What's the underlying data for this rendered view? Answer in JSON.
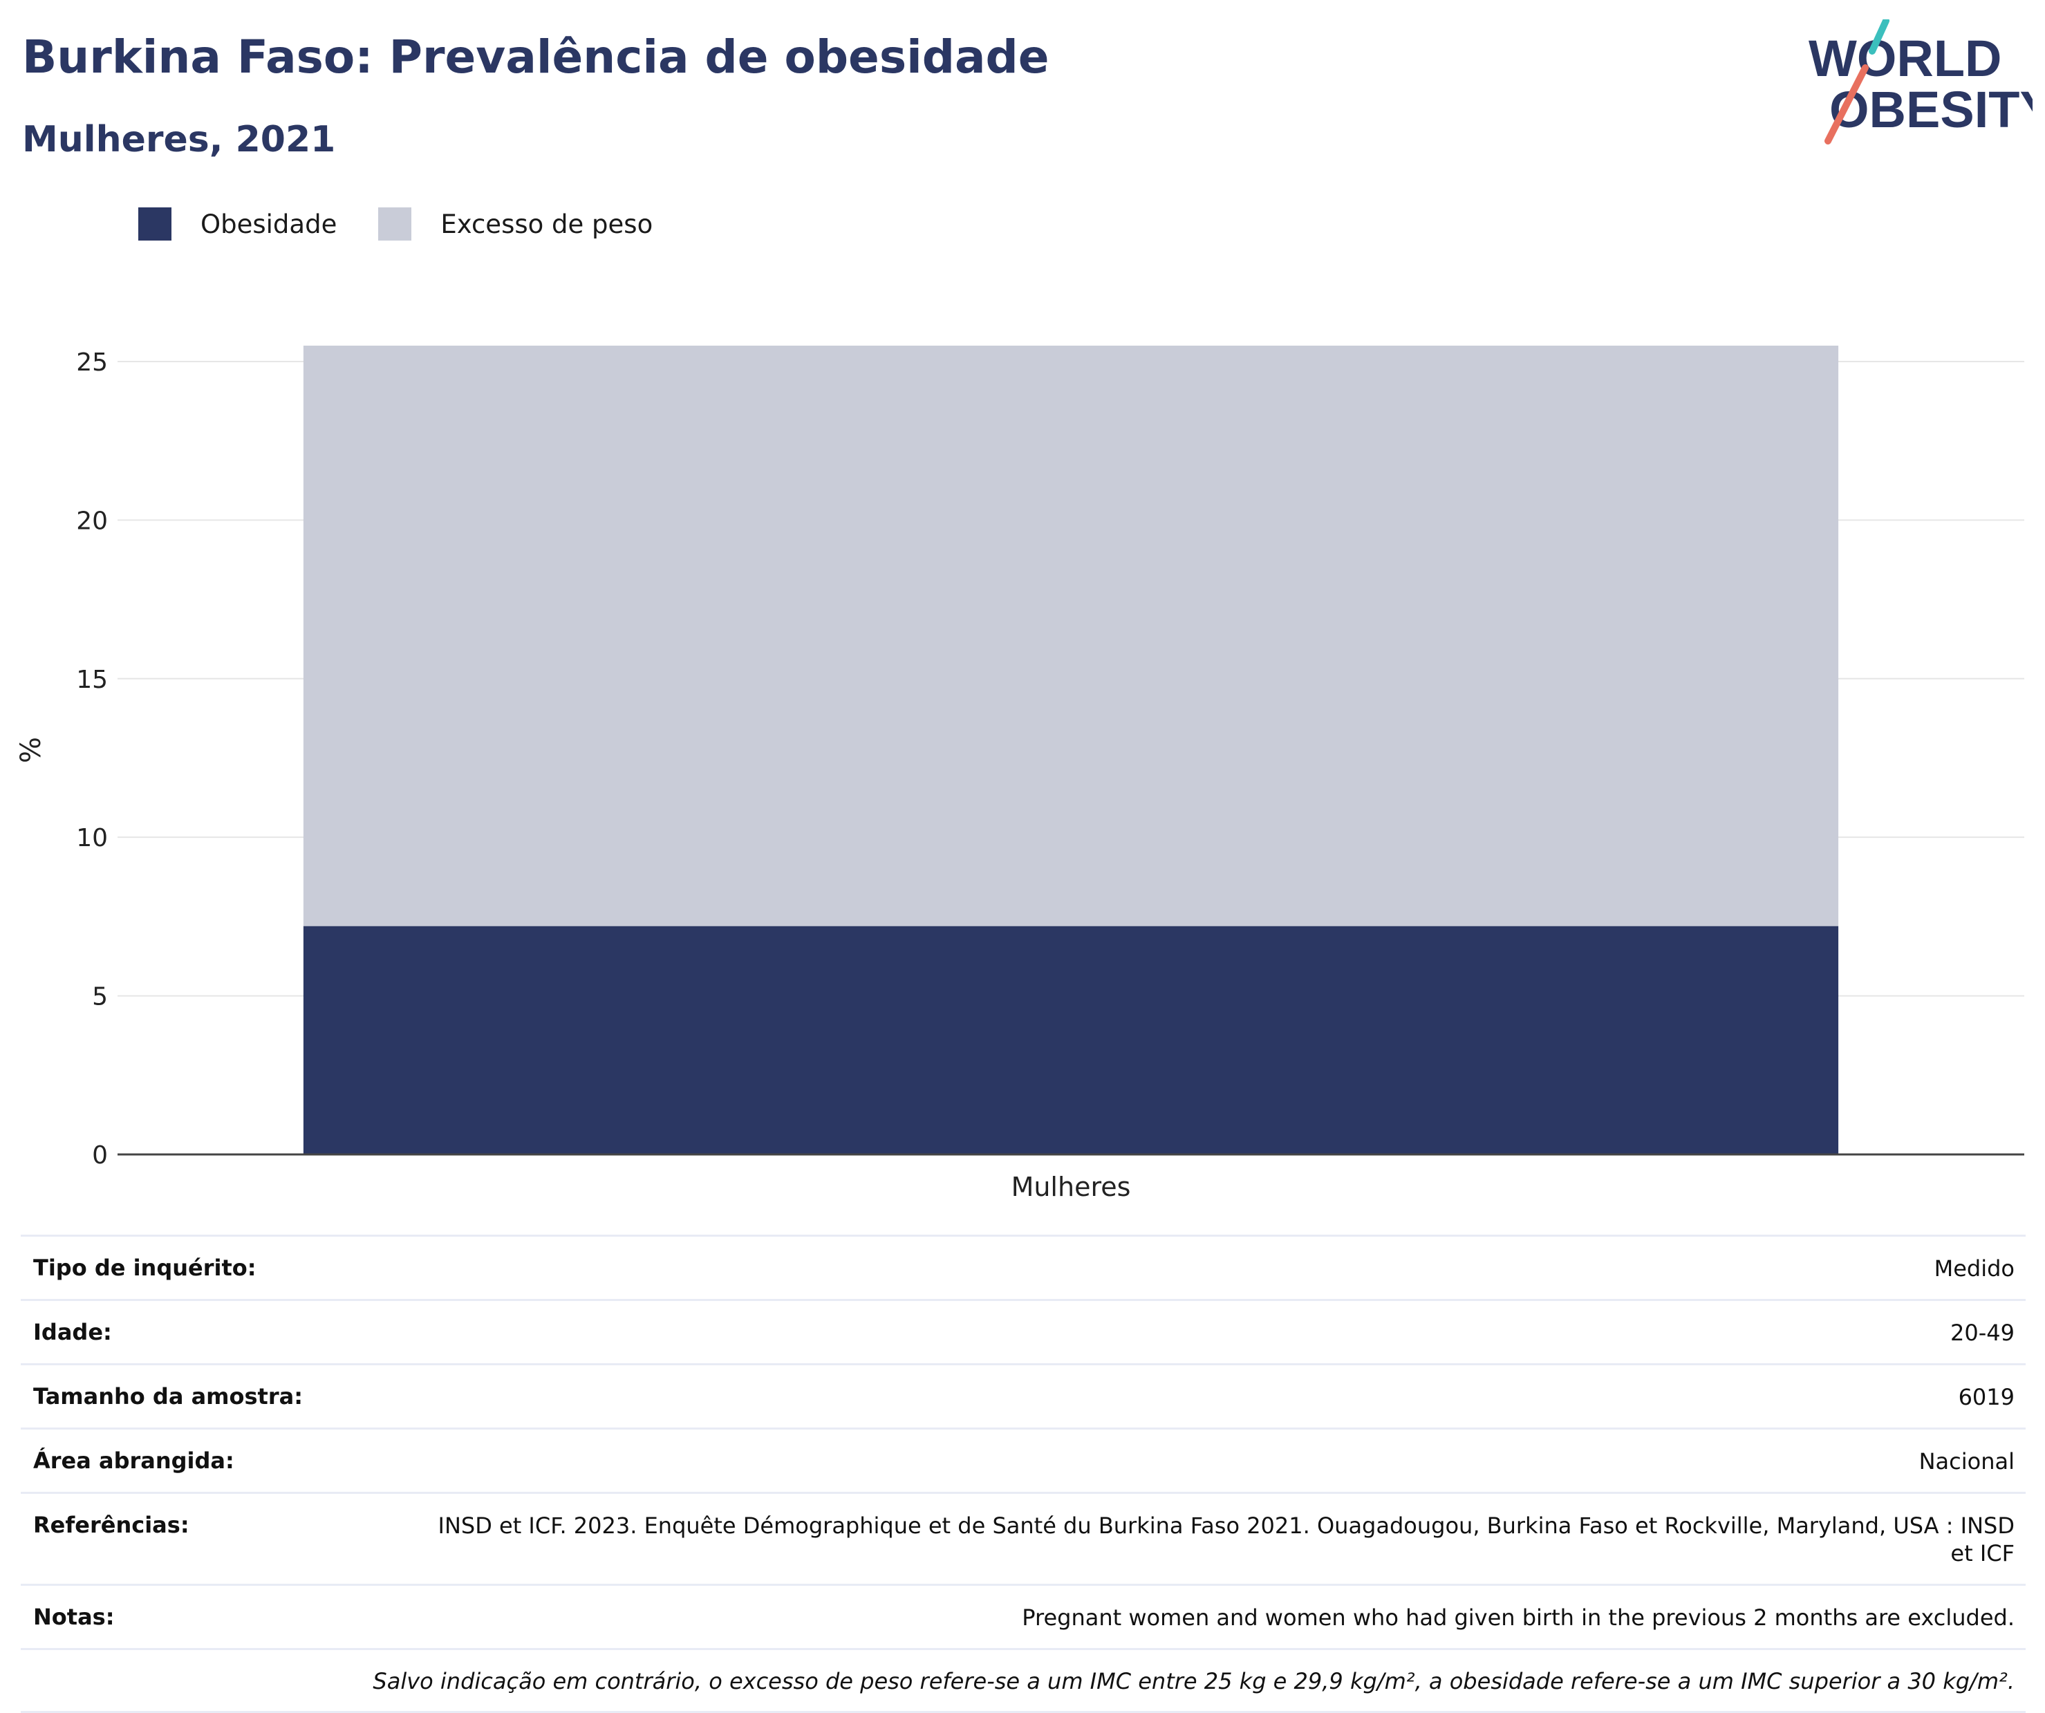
{
  "header": {
    "title": "Burkina Faso: Prevalência de obesidade",
    "subtitle": "Mulheres, 2021"
  },
  "logo": {
    "line1": "WORLD",
    "line2": "OBESITY"
  },
  "colors": {
    "obesity": "#2b3763",
    "overweight": "#c9ccd8",
    "title": "#2b3763",
    "logo_teal": "#3bbfbd",
    "logo_coral": "#e8705f"
  },
  "legend": [
    {
      "label": "Obesidade",
      "color": "#2b3763"
    },
    {
      "label": "Excesso de peso",
      "color": "#c9ccd8"
    }
  ],
  "chart_data": {
    "type": "bar",
    "stacked": true,
    "categories": [
      "Mulheres"
    ],
    "series": [
      {
        "name": "Obesidade",
        "values": [
          7.2
        ]
      },
      {
        "name": "Excesso de peso",
        "values": [
          18.3
        ]
      }
    ],
    "ylabel": "%",
    "xlabel": "",
    "ylim": [
      0,
      25.5
    ],
    "yticks": [
      0,
      5,
      10,
      15,
      20,
      25
    ],
    "grid": true,
    "legend_position": "top-left"
  },
  "info": {
    "rows": [
      {
        "label": "Tipo de inquérito:",
        "value": "Medido"
      },
      {
        "label": "Idade:",
        "value": "20-49"
      },
      {
        "label": "Tamanho da amostra:",
        "value": "6019"
      },
      {
        "label": "Área abrangida:",
        "value": "Nacional"
      },
      {
        "label": "Referências:",
        "value": "INSD et ICF. 2023. Enquête Démographique et de Santé du Burkina Faso 2021. Ouagadougou, Burkina Faso et Rockville, Maryland, USA : INSD et ICF"
      },
      {
        "label": "Notas:",
        "value": "Pregnant women and women who had given birth in the previous 2 months are excluded."
      }
    ],
    "footnote": "Salvo indicação em contrário, o excesso de peso refere-se a um IMC entre 25 kg e 29,9 kg/m², a obesidade refere-se a um IMC superior a 30 kg/m²."
  }
}
